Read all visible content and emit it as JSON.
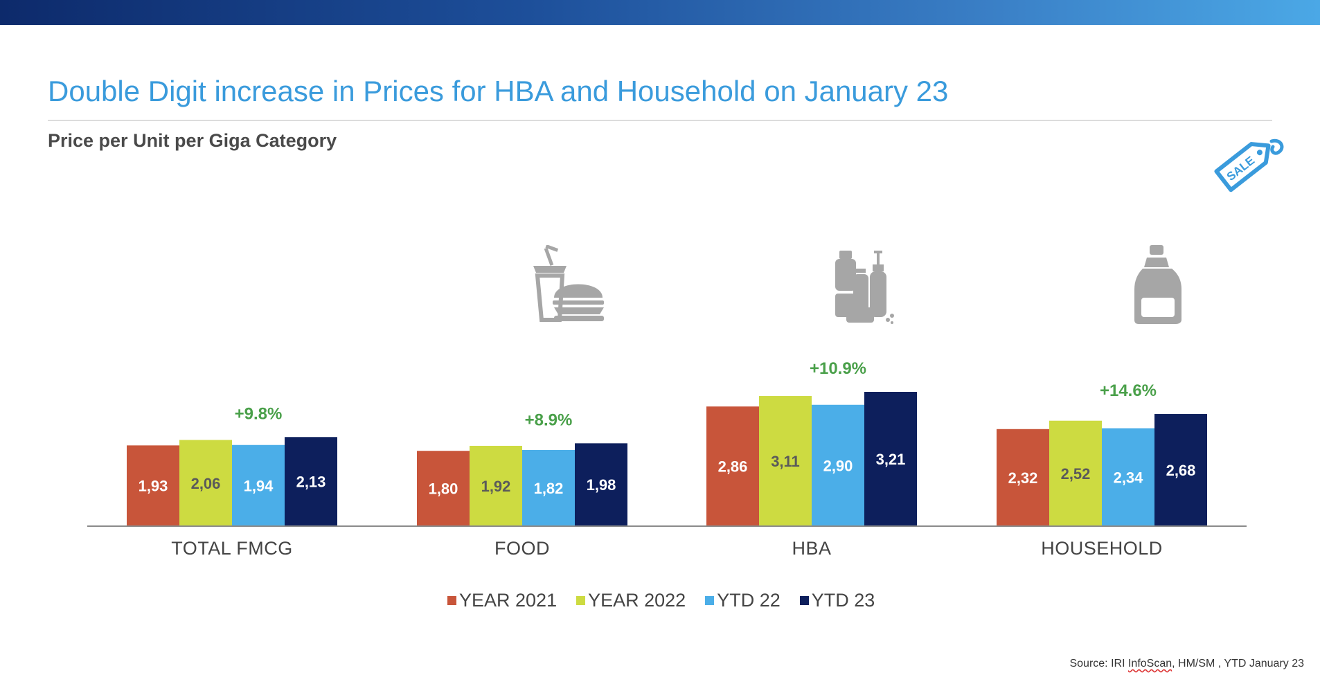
{
  "title": "Double Digit increase in Prices for HBA and Household on January 23",
  "subtitle": "Price per Unit per Giga Category",
  "source": {
    "prefix": "Source: IRI ",
    "brand": "InfoScan",
    "suffix": ", HM/SM , YTD January 23"
  },
  "icons": {
    "sale_tag": "sale-tag-icon",
    "sale_text": "SALE",
    "food": "fast-food-icon",
    "hba": "toiletries-icon",
    "household": "detergent-bottle-icon"
  },
  "colors": {
    "year2021": "#c8553a",
    "year2022": "#cddb41",
    "ytd22": "#4baee8",
    "ytd23": "#0d1f5c",
    "icon_gray": "#a6a6a6",
    "annotation_green": "#4aa04a",
    "title_blue": "#3a9bdc"
  },
  "chart_data": {
    "type": "bar",
    "categories": [
      "TOTAL FMCG",
      "FOOD",
      "HBA",
      "HOUSEHOLD"
    ],
    "series": [
      {
        "name": "YEAR 2021",
        "values": [
          1.93,
          1.8,
          2.86,
          2.32
        ],
        "labels": [
          "1,93",
          "1,80",
          "2,86",
          "2,32"
        ]
      },
      {
        "name": "YEAR 2022",
        "values": [
          2.06,
          1.92,
          3.11,
          2.52
        ],
        "labels": [
          "2,06",
          "1,92",
          "3,11",
          "2,52"
        ]
      },
      {
        "name": "YTD 22",
        "values": [
          1.94,
          1.82,
          2.9,
          2.34
        ],
        "labels": [
          "1,94",
          "1,82",
          "2,90",
          "2,34"
        ]
      },
      {
        "name": "YTD 23",
        "values": [
          2.13,
          1.98,
          3.21,
          2.68
        ],
        "labels": [
          "2,13",
          "1,98",
          "3,21",
          "2,68"
        ]
      }
    ],
    "annotations": [
      "+9.8%",
      "+8.9%",
      "+10.9%",
      "+14.6%"
    ],
    "title": "Price per Unit per Giga Category",
    "xlabel": "",
    "ylabel": "",
    "ylim": [
      0,
      3.21
    ],
    "grid": false,
    "legend": "bottom"
  }
}
